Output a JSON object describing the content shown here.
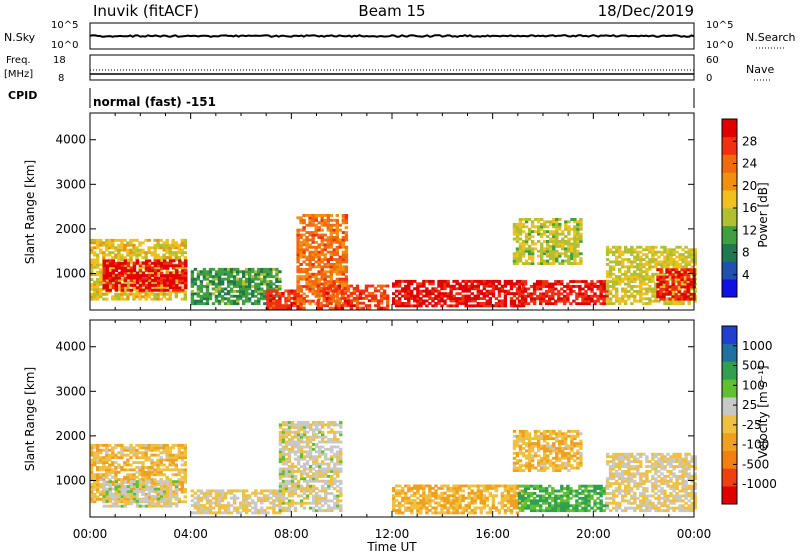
{
  "header": {
    "station": "Inuvik (fitACF)",
    "beam": "Beam 15",
    "date": "18/Dec/2019"
  },
  "top_panels": {
    "nsky_label": "N.Sky",
    "nsearch_label": "N.Search",
    "nsky_ticks": [
      "10^5",
      "10^0"
    ],
    "nsearch_ticks": [
      "10^5",
      "10^0"
    ],
    "freq_label_1": "Freq.",
    "freq_label_2": "[MHz]",
    "freq_ticks": [
      "18",
      "8"
    ],
    "nave_label": "Nave",
    "nave_ticks": [
      "60",
      "0"
    ],
    "cpid_label": "CPID",
    "cpid_text": "normal (fast) -151"
  },
  "colorbars": {
    "power": {
      "label": "Power [dB]",
      "ticks": [
        "28",
        "24",
        "20",
        "16",
        "12",
        "8",
        "4"
      ],
      "colors": [
        "#1010e0",
        "#2050b0",
        "#207850",
        "#40a040",
        "#b0c030",
        "#f0c020",
        "#f09010",
        "#f06a10",
        "#f03010",
        "#e00000"
      ]
    },
    "velocity": {
      "label": "Velocity [m s⁻¹]",
      "ticks": [
        "1000",
        "500",
        "100",
        "25",
        "-25",
        "-100",
        "-500",
        "-1000"
      ],
      "colors": [
        "#e00000",
        "#f04010",
        "#f08010",
        "#f0a020",
        "#f0c040",
        "#c8c8c8",
        "#60c030",
        "#30a050",
        "#2070a0",
        "#2040d0"
      ]
    }
  },
  "chart_data": [
    {
      "type": "heatmap",
      "title": "Power",
      "xlabel": "",
      "ylabel": "Slant Range [km]",
      "x_ticks": [
        "00:00",
        "04:00",
        "08:00",
        "12:00",
        "16:00",
        "20:00",
        "00:00"
      ],
      "y_ticks": [
        "1000",
        "2000",
        "3000",
        "4000"
      ],
      "xlim": [
        0,
        24
      ],
      "ylim": [
        180,
        4600
      ],
      "colorbar_range": [
        0,
        30
      ],
      "regions": [
        {
          "t0": 0.0,
          "t1": 3.8,
          "r0": 400,
          "r1": 1750,
          "v": 16
        },
        {
          "t0": 0.5,
          "t1": 3.8,
          "r0": 600,
          "r1": 1300,
          "v": 28
        },
        {
          "t0": 4.0,
          "t1": 7.5,
          "r0": 300,
          "r1": 1100,
          "v": 10
        },
        {
          "t0": 7.0,
          "t1": 8.5,
          "r0": 200,
          "r1": 600,
          "v": 26
        },
        {
          "t0": 8.2,
          "t1": 10.2,
          "r0": 300,
          "r1": 2300,
          "v": 22
        },
        {
          "t0": 9.0,
          "t1": 11.8,
          "r0": 200,
          "r1": 700,
          "v": 25
        },
        {
          "t0": 12.0,
          "t1": 17.2,
          "r0": 250,
          "r1": 850,
          "v": 28
        },
        {
          "t0": 17.0,
          "t1": 20.5,
          "r0": 300,
          "r1": 800,
          "v": 27
        },
        {
          "t0": 16.8,
          "t1": 19.5,
          "r0": 1200,
          "r1": 2200,
          "v": 14
        },
        {
          "t0": 20.5,
          "t1": 24.0,
          "r0": 300,
          "r1": 1600,
          "v": 15
        },
        {
          "t0": 22.5,
          "t1": 24.0,
          "r0": 400,
          "r1": 1100,
          "v": 27
        }
      ]
    },
    {
      "type": "heatmap",
      "title": "Velocity",
      "xlabel": "Time UT",
      "ylabel": "Slant Range [km]",
      "x_ticks": [
        "00:00",
        "04:00",
        "08:00",
        "12:00",
        "16:00",
        "20:00",
        "00:00"
      ],
      "y_ticks": [
        "1000",
        "2000",
        "3000",
        "4000"
      ],
      "xlim": [
        0,
        24
      ],
      "ylim": [
        180,
        4600
      ],
      "colorbar_range": [
        -1000,
        1000
      ],
      "regions": [
        {
          "t0": 0.0,
          "t1": 3.8,
          "r0": 500,
          "r1": 1800,
          "v": -150
        },
        {
          "t0": 0.5,
          "t1": 3.5,
          "r0": 400,
          "r1": 1000,
          "v": 80
        },
        {
          "t0": 4.0,
          "t1": 7.5,
          "r0": 250,
          "r1": 800,
          "v": 0
        },
        {
          "t0": 7.5,
          "t1": 10.0,
          "r0": 300,
          "r1": 2300,
          "v": 60
        },
        {
          "t0": 12.0,
          "t1": 17.2,
          "r0": 250,
          "r1": 900,
          "v": -200
        },
        {
          "t0": 17.0,
          "t1": 20.5,
          "r0": 300,
          "r1": 900,
          "v": 400
        },
        {
          "t0": 16.8,
          "t1": 19.5,
          "r0": 1200,
          "r1": 2100,
          "v": -150
        },
        {
          "t0": 20.5,
          "t1": 24.0,
          "r0": 300,
          "r1": 1600,
          "v": 0
        }
      ]
    }
  ]
}
